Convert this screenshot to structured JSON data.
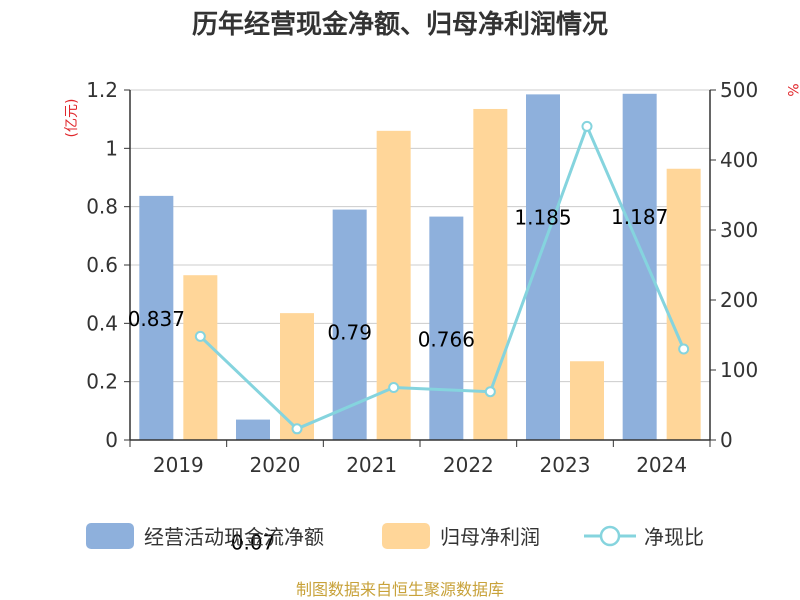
{
  "colors": {
    "operating_cash": "#8eb0dc",
    "net_profit": "#ffd699",
    "ratio_line": "#85d4de",
    "grid": "#cccccc",
    "axis": "#333333",
    "unit_label": "#e0262b",
    "source_text": "#c8a23a"
  },
  "chart_data": {
    "type": "bar",
    "title": "历年经营现金净额、归母净利润情况",
    "categories": [
      "2019",
      "2020",
      "2021",
      "2022",
      "2023",
      "2024"
    ],
    "left_axis": {
      "unit": "(亿元)",
      "ylim": [
        0,
        1.2
      ],
      "ticks": [
        "0",
        "0.2",
        "0.4",
        "0.6",
        "0.8",
        "1",
        "1.2"
      ]
    },
    "right_axis": {
      "unit": "%",
      "ylim": [
        0,
        500
      ],
      "ticks": [
        "0",
        "100",
        "200",
        "300",
        "400",
        "500"
      ]
    },
    "series": [
      {
        "name": "经营活动现金流净额",
        "type": "bar",
        "axis": "left",
        "values": [
          0.837,
          0.07,
          0.79,
          0.766,
          1.185,
          1.187
        ],
        "labels": [
          "0.837",
          "0.07",
          "0.79",
          "0.766",
          "1.185",
          "1.187"
        ]
      },
      {
        "name": "归母净利润",
        "type": "bar",
        "axis": "left",
        "values": [
          0.565,
          0.435,
          1.06,
          1.135,
          0.27,
          0.93
        ]
      },
      {
        "name": "净现比",
        "type": "line",
        "axis": "right",
        "values": [
          148,
          16,
          75,
          69,
          448,
          130
        ]
      }
    ],
    "legend": [
      "经营活动现金流净额",
      "归母净利润",
      "净现比"
    ],
    "source": "制图数据来自恒生聚源数据库"
  }
}
